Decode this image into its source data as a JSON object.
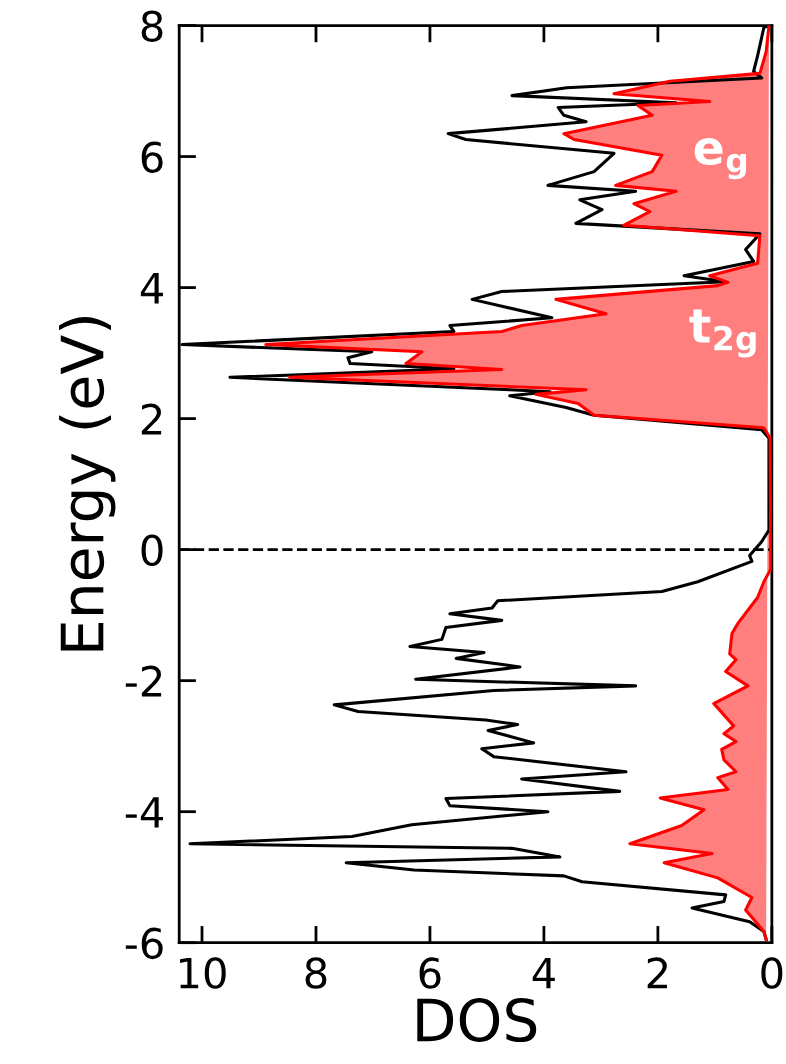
{
  "chart_data": {
    "type": "line",
    "xlabel": "DOS",
    "ylabel": "Energy (eV)",
    "xlim": [
      10.4,
      0
    ],
    "xticks": [
      10,
      8,
      6,
      4,
      2,
      0
    ],
    "ylim": [
      -6,
      8
    ],
    "yticks": [
      -6,
      -4,
      -2,
      0,
      2,
      4,
      6,
      8
    ],
    "grid": false,
    "legend": false,
    "marker": "none",
    "line_style": "solid",
    "series": [
      {
        "type": "line",
        "color": "#000000",
        "x": [
          0.05,
          0.14,
          0.25,
          0.32,
          0.18,
          3.6,
          4.56,
          1.68,
          3.75,
          3.65,
          3.26,
          5.68,
          5.37,
          2.77,
          3.12,
          3.93,
          2.39,
          3.37,
          2.98,
          3.44,
          0.21,
          0.46,
          0.32,
          1.54,
          0.81,
          4.74,
          5.26,
          3.86,
          5.65,
          5.58,
          10.35,
          7.02,
          7.44,
          7.4,
          5.58,
          9.51,
          4.6,
          3.89,
          4.6,
          3.61,
          3.12,
          0.18,
          0.05,
          0.05,
          0.18,
          0.39,
          0.35,
          1.3,
          1.93,
          4.81,
          4.91,
          5.65,
          4.74,
          5.72,
          5.79,
          6.35,
          5.05,
          5.54,
          4.42,
          6.25,
          2.39,
          4.88,
          7.68,
          7.26,
          5.02,
          4.46,
          4.98,
          4.18,
          5.09,
          4.88,
          2.56,
          4.39,
          2.67,
          5.72,
          5.65,
          3.93,
          6.32,
          7.37,
          10.21,
          4.56,
          3.72,
          7.47,
          6.28,
          3.65,
          3.33,
          0.81,
          0.84,
          1.4,
          0.39,
          0.14,
          0.1
        ],
        "values": [
          8,
          7.97,
          7.54,
          7.3,
          7.2,
          7.05,
          6.93,
          6.82,
          6.75,
          6.63,
          6.53,
          6.35,
          6.26,
          6.05,
          5.77,
          5.56,
          5.47,
          5.34,
          5.19,
          4.98,
          4.82,
          4.58,
          4.4,
          4.18,
          4.09,
          3.94,
          3.82,
          3.54,
          3.42,
          3.33,
          3.13,
          3.02,
          2.93,
          2.84,
          2.76,
          2.63,
          2.44,
          2.41,
          2.35,
          2.17,
          2.05,
          1.83,
          1.7,
          0.3,
          0.12,
          -0.09,
          -0.18,
          -0.49,
          -0.64,
          -0.78,
          -0.89,
          -0.98,
          -1.08,
          -1.19,
          -1.37,
          -1.48,
          -1.57,
          -1.66,
          -1.79,
          -1.98,
          -2.08,
          -2.15,
          -2.37,
          -2.47,
          -2.6,
          -2.67,
          -2.76,
          -2.95,
          -3.04,
          -3.16,
          -3.39,
          -3.5,
          -3.69,
          -3.8,
          -3.91,
          -4.0,
          -4.2,
          -4.38,
          -4.49,
          -4.56,
          -4.69,
          -4.78,
          -4.89,
          -4.98,
          -5.07,
          -5.27,
          -5.37,
          -5.47,
          -5.68,
          -5.83,
          -5.95
        ]
      },
      {
        "type": "area",
        "color": "#ff0000",
        "x": [
          0.05,
          0.1,
          0.21,
          1.79,
          2.77,
          1.09,
          2.35,
          2.1,
          3.65,
          3.47,
          1.93,
          2.1,
          2.74,
          1.68,
          2.42,
          2.14,
          2.6,
          0.21,
          0.25,
          1.09,
          0.77,
          0.95,
          3.79,
          2.91,
          4.39,
          4.74,
          8.88,
          6.14,
          6.42,
          4.74,
          8.46,
          3.26,
          4.14,
          3.4,
          3.12,
          0.14,
          0.03,
          0.02,
          0.02,
          0.14,
          0.25,
          0.6,
          0.7,
          0.74,
          0.63,
          0.81,
          0.42,
          1.02,
          0.67,
          0.84,
          0.63,
          0.88,
          0.84,
          0.63,
          0.95,
          0.77,
          1.96,
          1.19,
          1.58,
          2.49,
          1.05,
          1.89,
          0.95,
          0.35,
          0.46,
          0.14,
          0.1
        ],
        "values": [
          8,
          7.6,
          7.27,
          7.15,
          6.96,
          6.84,
          6.78,
          6.63,
          6.35,
          6.26,
          6.02,
          5.77,
          5.56,
          5.47,
          5.28,
          5.16,
          4.95,
          4.79,
          4.37,
          4.18,
          4.08,
          4.03,
          3.82,
          3.6,
          3.42,
          3.33,
          3.13,
          3.02,
          2.84,
          2.75,
          2.63,
          2.44,
          2.37,
          2.23,
          2.05,
          1.86,
          1.7,
          0.0,
          -0.3,
          -0.49,
          -0.73,
          -1.13,
          -1.28,
          -1.59,
          -1.68,
          -1.86,
          -2.08,
          -2.35,
          -2.69,
          -2.81,
          -2.93,
          -3.05,
          -3.21,
          -3.39,
          -3.48,
          -3.66,
          -3.79,
          -3.97,
          -4.21,
          -4.49,
          -4.64,
          -4.78,
          -5.01,
          -5.31,
          -5.5,
          -5.83,
          -5.95
        ]
      }
    ],
    "ref_lines": [
      {
        "axis": "y",
        "value": 0,
        "color": "#000000",
        "line_style": "dashed"
      }
    ],
    "annotations": [
      "e$_{g}$",
      "t$_{2g}$"
    ]
  }
}
